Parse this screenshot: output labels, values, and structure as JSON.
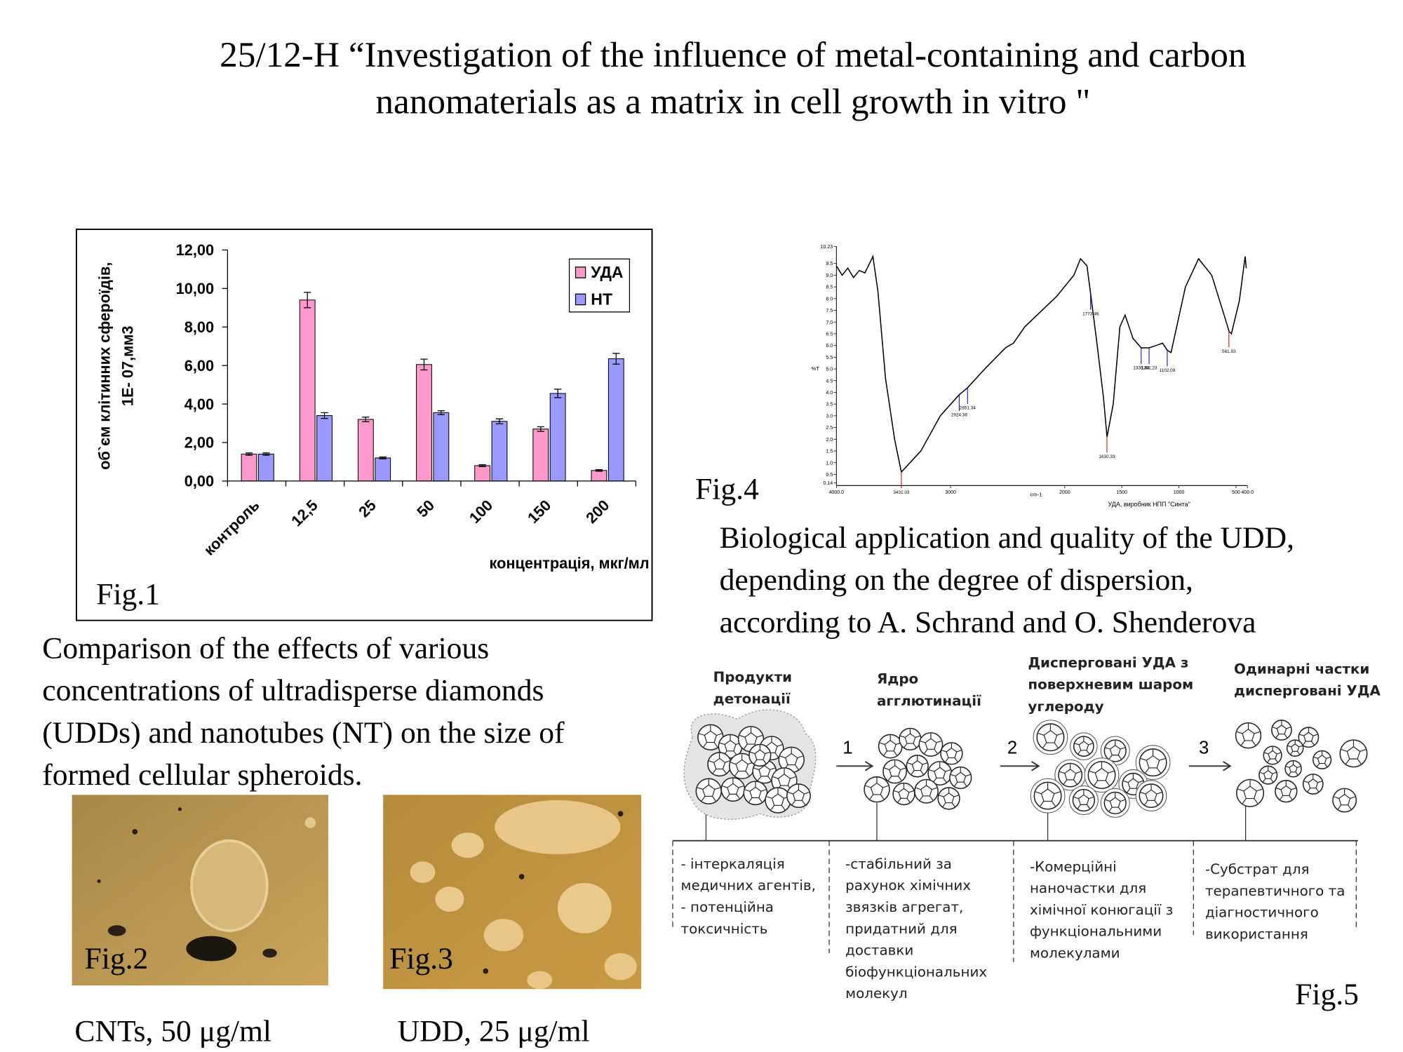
{
  "title": [
    "25/12-H “Investigation of the influence of metal-containing and carbon",
    "nanomaterials as a matrix in cell growth in vitro \""
  ],
  "chart_data": [
    {
      "type": "bar",
      "y_label": [
        "об`єм клітинних сфероїдів,",
        "1E- 07,мм3"
      ],
      "x_label": "концентрація, мкг/мл",
      "categories": [
        "контроль",
        "12,5",
        "25",
        "50",
        "100",
        "150",
        "200"
      ],
      "series": [
        {
          "name": "УДА",
          "color": "#ff99cc",
          "values": [
            1.4,
            9.4,
            3.2,
            6.05,
            0.8,
            2.7,
            0.55
          ],
          "errors": [
            0.06,
            0.4,
            0.12,
            0.28,
            0.05,
            0.12,
            0.04
          ]
        },
        {
          "name": "НТ",
          "color": "#9999ff",
          "values": [
            1.4,
            3.4,
            1.2,
            3.55,
            3.1,
            4.55,
            6.35
          ],
          "errors": [
            0.06,
            0.15,
            0.05,
            0.1,
            0.13,
            0.22,
            0.28
          ]
        }
      ],
      "ylim": [
        0,
        12
      ],
      "yticks": [
        {
          "value": 0,
          "label": "0,00"
        },
        {
          "value": 2,
          "label": "2,00"
        },
        {
          "value": 4,
          "label": "4,00"
        },
        {
          "value": 6,
          "label": "6,00"
        },
        {
          "value": 8,
          "label": "8,00"
        },
        {
          "value": 10,
          "label": "10,00"
        },
        {
          "value": 12,
          "label": "12,00"
        }
      ],
      "grid": false,
      "legend": "upper right"
    },
    {
      "type": "line",
      "y_label": "%T",
      "x_label": "cm-1",
      "caption": "УДА, виробник НПП \"Синта\"",
      "color": "#000000",
      "x": [
        4000,
        3950,
        3900,
        3850,
        3800,
        3750,
        3700,
        3680,
        3636,
        3570,
        3490,
        3431,
        3260,
        3090,
        2980,
        2924,
        2851,
        2700,
        2520,
        2450,
        2350,
        2070,
        1920,
        1862,
        1805,
        1773,
        1718,
        1661,
        1630,
        1575,
        1517,
        1471,
        1402,
        1330,
        1261,
        1200,
        1144,
        1102,
        1069,
        943,
        828,
        713,
        598,
        561,
        540,
        471,
        420,
        410
      ],
      "y": [
        9.4,
        9.0,
        9.3,
        8.9,
        9.2,
        9.1,
        9.6,
        9.8,
        8.3,
        4.6,
        2.0,
        0.6,
        1.5,
        3.0,
        3.6,
        3.9,
        4.2,
        5.0,
        5.9,
        6.1,
        6.8,
        8.1,
        9.0,
        9.7,
        9.4,
        8.2,
        6.1,
        3.8,
        2.1,
        3.5,
        6.8,
        7.3,
        6.3,
        5.9,
        5.9,
        6.0,
        6.1,
        5.8,
        5.7,
        8.5,
        9.7,
        9.0,
        7.2,
        6.6,
        6.5,
        7.9,
        9.8,
        9.3
      ],
      "peaks": [
        {
          "x": 3431.03,
          "color": "#dd0000"
        },
        {
          "x": 2924.38,
          "color": "#0000dd"
        },
        {
          "x": 2851.34,
          "color": "#0000dd"
        },
        {
          "x": 1773.46,
          "color": "#0000dd"
        },
        {
          "x": 1630.33,
          "color": "#dd0000"
        },
        {
          "x": 1330.44,
          "color": "#0000dd"
        },
        {
          "x": 1261.23,
          "color": "#0000dd"
        },
        {
          "x": 1102.09,
          "color": "#0000dd"
        },
        {
          "x": 561.93,
          "color": "#dd0000"
        }
      ],
      "xlim": [
        4000,
        400
      ],
      "xticks": [
        {
          "value": 4000,
          "label": "4000.0"
        },
        3000,
        2000,
        1500,
        1000,
        500,
        {
          "value": 400,
          "label": "400.0"
        }
      ],
      "ylim": [
        0.14,
        10.23
      ],
      "yticks": [
        0.14,
        0.5,
        {
          "value": 1,
          "label": "1.0"
        },
        1.5,
        {
          "value": 2,
          "label": "2.0"
        },
        2.5,
        {
          "value": 3,
          "label": "3.0"
        },
        3.5,
        {
          "value": 4,
          "label": "4.0"
        },
        4.5,
        {
          "value": 5,
          "label": "5.0"
        },
        5.5,
        {
          "value": 6,
          "label": "6.0"
        },
        6.5,
        {
          "value": 7,
          "label": "7.0"
        },
        7.5,
        {
          "value": 8,
          "label": "8.0"
        },
        8.5,
        {
          "value": 9,
          "label": "9.0"
        },
        9.5,
        10.23
      ]
    }
  ],
  "fig1": {
    "label": "Fig.1",
    "caption": [
      "Comparison of the effects of various",
      "concentrations of ultradisperse diamonds",
      "(UDDs) and nanotubes (NT) on the size of",
      "formed cellular spheroids."
    ]
  },
  "fig2": {
    "label": "Fig.2",
    "caption": "CNTs, 50 μg/ml"
  },
  "fig3": {
    "label": "Fig.3",
    "caption": "UDD, 25 μg/ml"
  },
  "fig4": {
    "label": "Fig.4",
    "caption": [
      "Biological application and quality of the UDD,",
      "depending on the degree of dispersion,",
      "according to A. Schrand and O. Shenderova"
    ]
  },
  "fig5": {
    "label": "Fig.5",
    "steps": [
      "1",
      "2",
      "3"
    ],
    "stages": [
      {
        "title": [
          "Продукти",
          "детонації"
        ],
        "description": [
          "- інтеркаляція",
          "медичних агентів,",
          "- потенційна",
          "токсичність"
        ]
      },
      {
        "title": [
          "Ядро",
          "агглютинації"
        ],
        "description": [
          "-стабільний за",
          "рахунок хімічних",
          "звязків агрегат,",
          "придатний для",
          "доставки",
          "біофункціональних",
          "молекул"
        ]
      },
      {
        "title": [
          "Дисперговані УДА з",
          "поверхневим шаром",
          "углероду"
        ],
        "description": [
          "-Комерційні",
          "наночастки для",
          "хімічної конюгації з",
          "функціональними",
          "молекулами"
        ]
      },
      {
        "title": [
          "Одинарні частки",
          "дисперговані УДА"
        ],
        "description": [
          "-Субстрат для",
          "терапевтичного та",
          "діагностичного",
          "використання"
        ]
      }
    ]
  }
}
